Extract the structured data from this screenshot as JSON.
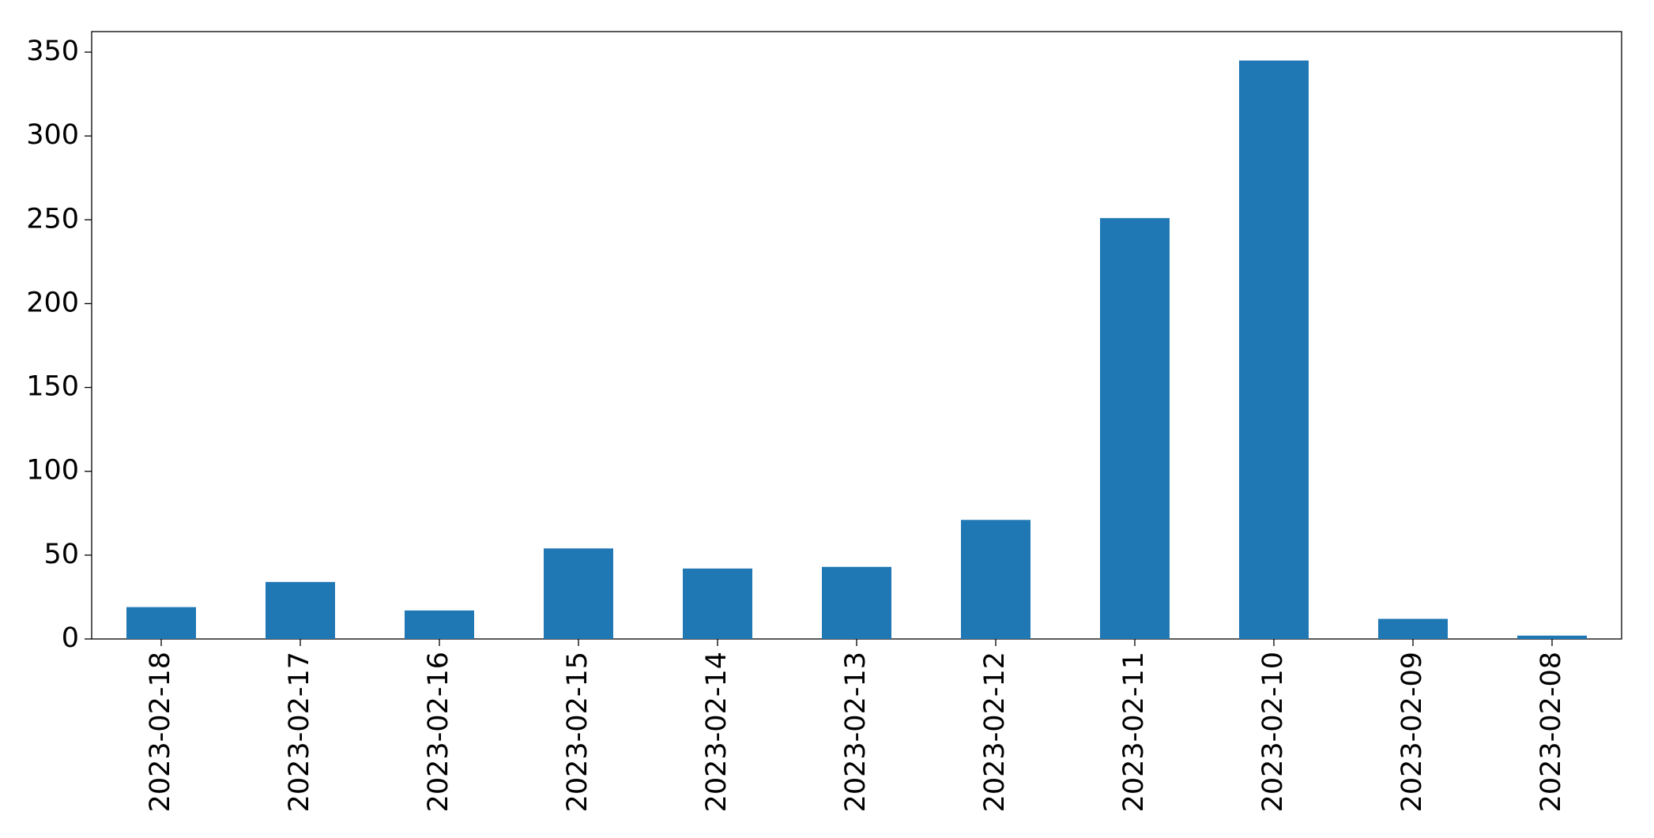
{
  "chart_data": {
    "type": "bar",
    "categories": [
      "2023-02-18",
      "2023-02-17",
      "2023-02-16",
      "2023-02-15",
      "2023-02-14",
      "2023-02-13",
      "2023-02-12",
      "2023-02-11",
      "2023-02-10",
      "2023-02-09",
      "2023-02-08"
    ],
    "values": [
      19,
      34,
      17,
      54,
      42,
      43,
      71,
      251,
      345,
      12,
      2
    ],
    "color": "#1f77b4",
    "ylim": [
      0,
      362.25
    ],
    "yticks": [
      0,
      50,
      100,
      150,
      200,
      250,
      300,
      350
    ],
    "grid": false
  }
}
